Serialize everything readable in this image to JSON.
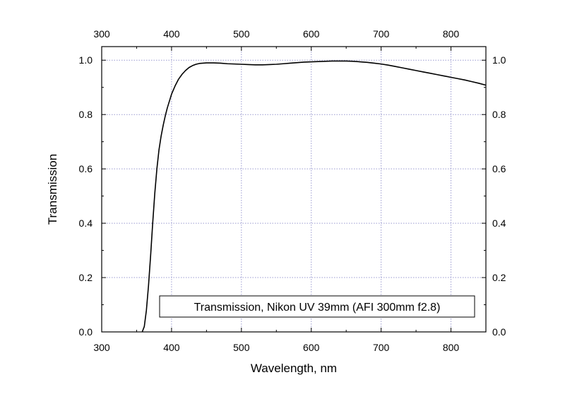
{
  "chart_data": {
    "type": "line",
    "title": "",
    "xlabel": "Wavelength, nm",
    "ylabel": "Transmission",
    "xlim": [
      300,
      850
    ],
    "ylim": [
      0.0,
      1.05
    ],
    "x_ticks": [
      "300",
      "400",
      "500",
      "600",
      "700",
      "800"
    ],
    "y_ticks": [
      "0.0",
      "0.2",
      "0.4",
      "0.6",
      "0.8",
      "1.0"
    ],
    "top_axis_ticks": [
      "300",
      "400",
      "500",
      "600",
      "700",
      "800"
    ],
    "right_axis_ticks": [
      "0.0",
      "0.2",
      "0.4",
      "0.6",
      "0.8",
      "1.0"
    ],
    "grid": true,
    "grid_color": "#9a9ad0",
    "line_color": "#000000",
    "legend_placement": "bottom-right",
    "series": [
      {
        "name": "Transmission, Nikon UV 39mm (AFI 300mm f2.8)",
        "x": [
          358,
          361,
          364,
          367,
          370,
          373,
          376,
          379,
          382,
          385,
          388,
          391,
          394,
          397,
          400,
          405,
          410,
          415,
          420,
          425,
          430,
          435,
          440,
          445,
          450,
          460,
          470,
          480,
          490,
          500,
          510,
          520,
          530,
          540,
          550,
          560,
          570,
          580,
          590,
          600,
          610,
          620,
          630,
          640,
          650,
          660,
          670,
          680,
          690,
          700,
          710,
          720,
          730,
          740,
          750,
          760,
          770,
          780,
          790,
          800,
          810,
          820,
          830,
          840,
          850
        ],
        "y": [
          0.0,
          0.02,
          0.08,
          0.17,
          0.28,
          0.4,
          0.51,
          0.6,
          0.67,
          0.72,
          0.76,
          0.795,
          0.825,
          0.85,
          0.875,
          0.905,
          0.93,
          0.948,
          0.962,
          0.973,
          0.98,
          0.985,
          0.988,
          0.989,
          0.99,
          0.99,
          0.989,
          0.987,
          0.986,
          0.985,
          0.984,
          0.983,
          0.983,
          0.984,
          0.985,
          0.987,
          0.989,
          0.991,
          0.993,
          0.994,
          0.995,
          0.996,
          0.997,
          0.997,
          0.997,
          0.996,
          0.994,
          0.992,
          0.989,
          0.986,
          0.982,
          0.977,
          0.972,
          0.967,
          0.962,
          0.957,
          0.952,
          0.947,
          0.942,
          0.937,
          0.932,
          0.927,
          0.921,
          0.915,
          0.908
        ]
      }
    ]
  }
}
